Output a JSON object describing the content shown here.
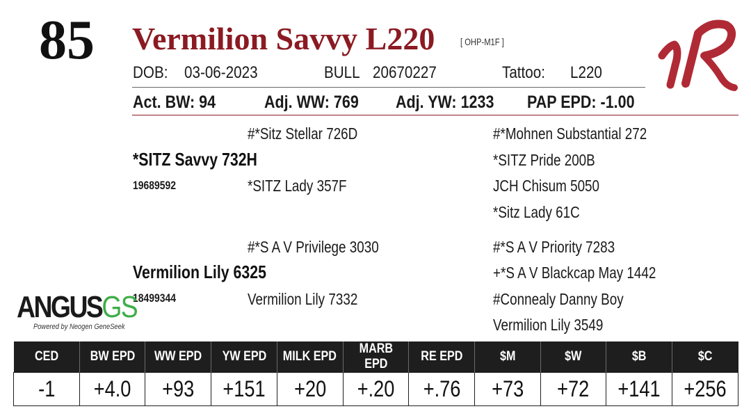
{
  "lot_number": "85",
  "animal": {
    "name": "Vermilion Savvy L220",
    "registration_tag": "[ OHP-M1F ]",
    "dob_label": "DOB:",
    "dob": "03-06-2023",
    "sex": "BULL",
    "reg_number": "20670227",
    "tattoo_label": "Tattoo:",
    "tattoo": "L220"
  },
  "performance": {
    "act_bw": "Act. BW: 94",
    "adj_ww": "Adj. WW: 769",
    "adj_yw": "Adj. YW: 1233",
    "pap_epd": "PAP EPD: -1.00"
  },
  "pedigree": {
    "sire": {
      "name": "*SITZ Savvy 732H",
      "reg": "19689592",
      "sire": "#*Sitz Stellar 726D",
      "dam": "*SITZ Lady 357F",
      "grand": [
        "#*Mohnen Substantial 272",
        "*SITZ Pride 200B",
        "JCH Chisum 5050",
        "*Sitz Lady 61C"
      ]
    },
    "dam": {
      "name": "Vermilion Lily 6325",
      "reg": "18499344",
      "sire": "#*S A V Privilege 3030",
      "dam": "Vermilion Lily 7332",
      "grand": [
        "#*S A V Priority 7283",
        "+*S A V Blackcap May 1442",
        "#Connealy Danny Boy",
        "Vermilion Lily 3549"
      ]
    }
  },
  "epd_headers": [
    "CED",
    "BW EPD",
    "WW EPD",
    "YW EPD",
    "MILK EPD",
    "MARB EPD",
    "RE EPD",
    "$M",
    "$W",
    "$B",
    "$C"
  ],
  "epd_values": [
    "-1",
    "+4.0",
    "+93",
    "+151",
    "+20",
    "+.20",
    "+.76",
    "+73",
    "+72",
    "+141",
    "+256"
  ],
  "logo": {
    "word": "ANGUS",
    "gs": "GS",
    "tagline": "Powered by Neogen GeneSeek"
  },
  "colors": {
    "title": "#8b1a22",
    "rule": "#8b1a22",
    "brand": "#b02a35",
    "gs_green": "#3fae49"
  }
}
